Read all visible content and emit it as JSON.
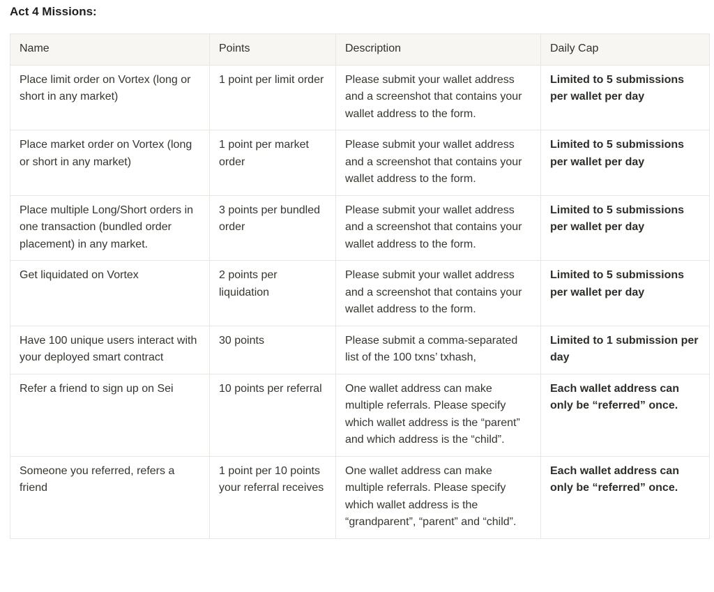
{
  "page": {
    "title": "Act 4 Missions:"
  },
  "colors": {
    "header_background": "#f7f6f3",
    "border": "#e7e6e3",
    "text": "#37352f",
    "background": "#ffffff"
  },
  "table": {
    "headers": [
      "Name",
      "Points",
      "Description",
      "Daily Cap"
    ],
    "rows": [
      {
        "name": "Place limit order on Vortex (long or short in any market)",
        "points": "1 point per limit order",
        "description": "Please submit your wallet address and a screenshot that contains your wallet address to the form.",
        "daily_cap": "Limited to 5 submissions per wallet per day"
      },
      {
        "name": "Place market order on Vortex (long or short in any market)",
        "points": "1 point per market order",
        "description": "Please submit your wallet address and a screenshot that contains your wallet address to the form.",
        "daily_cap": "Limited to 5 submissions per wallet per day"
      },
      {
        "name": "Place multiple Long/Short orders in one transaction (bundled order placement) in any market.",
        "points": "3 points per bundled order",
        "description": "Please submit your wallet address and a screenshot that contains your wallet address to the form.",
        "daily_cap": "Limited to 5 submissions per wallet per day"
      },
      {
        "name": "Get liquidated on Vortex",
        "points": "2 points per liquidation",
        "description": "Please submit your wallet address and a screenshot that contains your wallet address to the form.",
        "daily_cap": "Limited to 5 submissions per wallet per day"
      },
      {
        "name": "Have 100 unique users interact with your deployed smart contract",
        "points": "30 points",
        "description": "Please submit a comma-separated list of the 100 txns’ txhash,",
        "daily_cap": "Limited to 1 submission per day"
      },
      {
        "name": "Refer a friend to sign up on Sei",
        "points": "10 points per referral",
        "description": "One wallet address can make multiple referrals. Please specify which wallet address is the “parent” and which address is the “child”.",
        "daily_cap": "Each wallet address can only be “referred” once."
      },
      {
        "name": "Someone you referred, refers a friend",
        "points": "1 point per 10 points your referral receives",
        "description": "One wallet address can make multiple referrals. Please specify which wallet address is the “grandparent”, “parent” and “child”.",
        "daily_cap": "Each wallet address can only be “referred” once."
      }
    ]
  }
}
